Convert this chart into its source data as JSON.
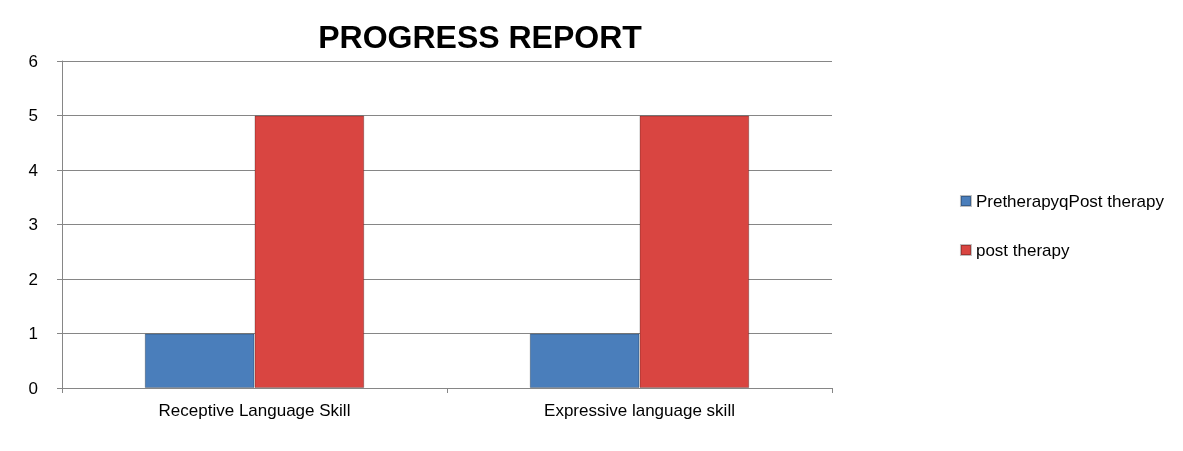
{
  "chart_data": {
    "type": "bar",
    "title": "PROGRESS REPORT",
    "categories": [
      "Receptive Language Skill",
      "Expressive language skill"
    ],
    "series": [
      {
        "name": "PretherapyqPost therapy",
        "color": "#4a7ebb",
        "values": [
          1,
          1
        ]
      },
      {
        "name": "post therapy",
        "color": "#d94541",
        "values": [
          5,
          5
        ]
      }
    ],
    "ylim": [
      0,
      6
    ],
    "yticks": [
      0,
      1,
      2,
      3,
      4,
      5,
      6
    ],
    "grid": "y",
    "legend": "right"
  }
}
